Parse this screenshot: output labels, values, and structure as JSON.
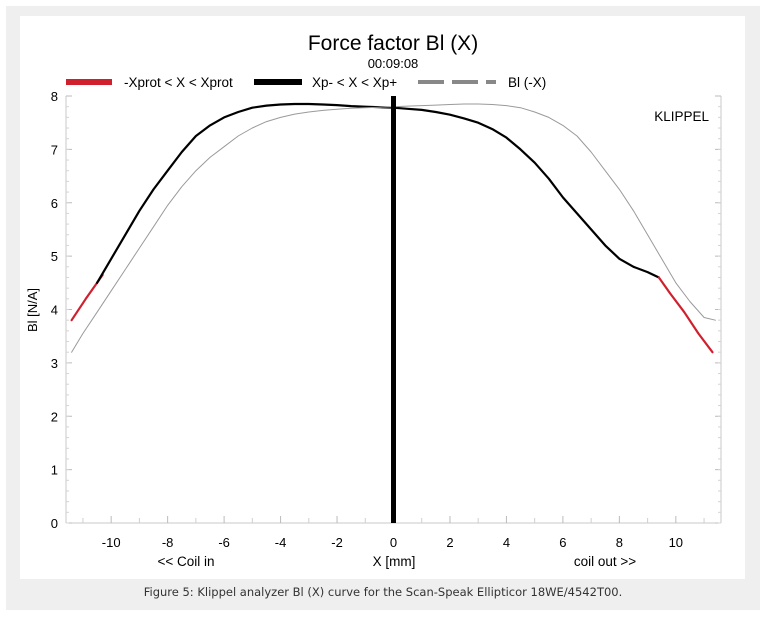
{
  "figure": {
    "caption": "Figure 5: Klippel analyzer Bl (X) curve for the Scan-Speak Ellipticor 18WE/4542T00."
  },
  "chart_data": {
    "type": "line",
    "title": "Force factor Bl (X)",
    "subtitle": "00:09:08",
    "brand": "KLIPPEL",
    "xlabel": "X [mm]",
    "ylabel": "Bl [N/A]",
    "x_annotation_left": "<< Coil in",
    "x_annotation_right": "coil out >>",
    "xlim": [
      -11.6,
      11.6
    ],
    "ylim": [
      0,
      8
    ],
    "xticks": [
      -10,
      -8,
      -6,
      -4,
      -2,
      0,
      2,
      4,
      6,
      8,
      10
    ],
    "yticks": [
      0,
      1,
      2,
      3,
      4,
      5,
      6,
      7,
      8
    ],
    "grid": false,
    "legend_position": "top",
    "rest_position_line": {
      "x": 0,
      "color": "#000000"
    },
    "series": [
      {
        "name": "-Xprot < X < Xprot",
        "color": "#d0202e",
        "x": [
          -11.4,
          -10.9,
          -10.5,
          -10.3
        ],
        "y": [
          3.8,
          4.2,
          4.5,
          4.65
        ]
      },
      {
        "name": "Xp- < X < Xp+",
        "color": "#000000",
        "x": [
          -10.5,
          -10.0,
          -9.5,
          -9.0,
          -8.5,
          -8.0,
          -7.5,
          -7.0,
          -6.5,
          -6.0,
          -5.5,
          -5.0,
          -4.5,
          -4.0,
          -3.5,
          -3.0,
          -2.5,
          -2.0,
          -1.5,
          -1.0,
          -0.5,
          0.0,
          0.5,
          1.0,
          1.5,
          2.0,
          2.5,
          3.0,
          3.5,
          4.0,
          4.5,
          5.0,
          5.5,
          6.0,
          6.5,
          7.0,
          7.5,
          8.0,
          8.5,
          9.0,
          9.4
        ],
        "y": [
          4.5,
          4.95,
          5.4,
          5.85,
          6.25,
          6.6,
          6.95,
          7.25,
          7.45,
          7.6,
          7.7,
          7.78,
          7.82,
          7.84,
          7.85,
          7.85,
          7.84,
          7.83,
          7.81,
          7.8,
          7.79,
          7.78,
          7.76,
          7.74,
          7.7,
          7.65,
          7.58,
          7.5,
          7.38,
          7.22,
          7.0,
          6.75,
          6.45,
          6.1,
          5.8,
          5.5,
          5.2,
          4.95,
          4.8,
          4.7,
          4.6
        ]
      },
      {
        "name": "-Xprot < X < Xprot",
        "color": "#d0202e",
        "x": [
          9.4,
          9.8,
          10.3,
          10.8,
          11.3
        ],
        "y": [
          4.6,
          4.3,
          3.95,
          3.55,
          3.2
        ]
      },
      {
        "name": "Bl (-X)",
        "color": "#888888",
        "x": [
          -11.4,
          -11.0,
          -10.5,
          -10.0,
          -9.5,
          -9.0,
          -8.5,
          -8.0,
          -7.5,
          -7.0,
          -6.5,
          -6.0,
          -5.5,
          -5.0,
          -4.5,
          -4.0,
          -3.5,
          -3.0,
          -2.5,
          -2.0,
          -1.5,
          -1.0,
          -0.5,
          0.0,
          0.5,
          1.0,
          1.5,
          2.0,
          2.5,
          3.0,
          3.5,
          4.0,
          4.5,
          5.0,
          5.5,
          6.0,
          6.5,
          7.0,
          7.5,
          8.0,
          8.5,
          9.0,
          9.5,
          10.0,
          10.5,
          11.0,
          11.4
        ],
        "y": [
          3.2,
          3.55,
          3.95,
          4.35,
          4.75,
          5.15,
          5.55,
          5.95,
          6.3,
          6.6,
          6.85,
          7.05,
          7.25,
          7.4,
          7.52,
          7.6,
          7.66,
          7.7,
          7.73,
          7.75,
          7.77,
          7.78,
          7.79,
          7.8,
          7.81,
          7.82,
          7.83,
          7.84,
          7.85,
          7.85,
          7.84,
          7.82,
          7.78,
          7.7,
          7.6,
          7.45,
          7.25,
          6.95,
          6.6,
          6.25,
          5.85,
          5.4,
          4.95,
          4.5,
          4.15,
          3.85,
          3.8
        ]
      }
    ],
    "legend": [
      {
        "label": "-Xprot < X < Xprot",
        "color": "#d0202e",
        "style": "solid-thick"
      },
      {
        "label": "Xp- < X < Xp+",
        "color": "#000000",
        "style": "solid-thick"
      },
      {
        "label": "Bl (-X)",
        "color": "#888888",
        "style": "dashed"
      }
    ]
  }
}
